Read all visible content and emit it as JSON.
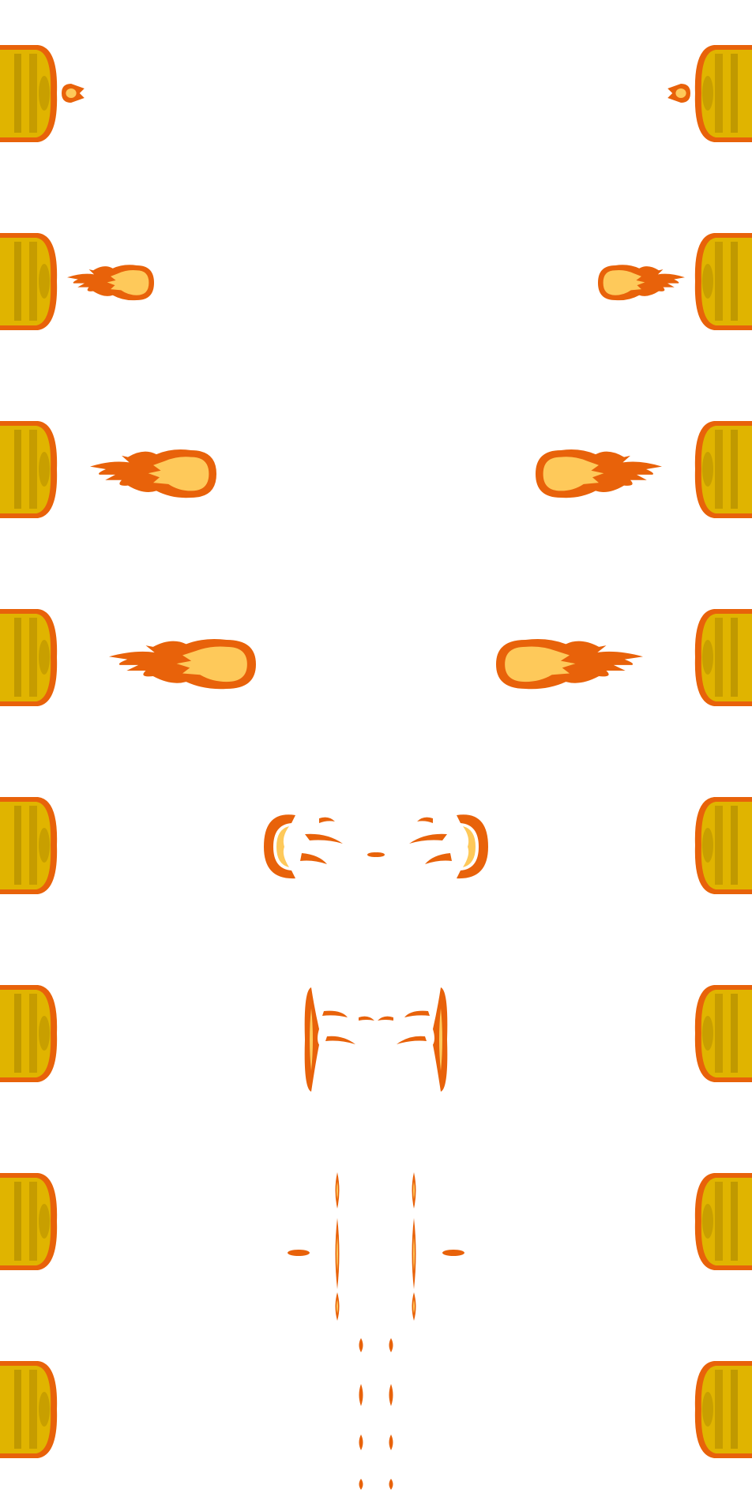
{
  "sprite_sheet": {
    "background": "#ffffff",
    "colors": {
      "flame_outline": "#e8620a",
      "flame_core": "#fec95a",
      "cannon_body": "#e0b400",
      "cannon_dark": "#b08800",
      "cannon_rim": "#e8620a",
      "cannon_shade": "#9a7800"
    },
    "frames": [
      {
        "name": "frame-1",
        "stage": "spark"
      },
      {
        "name": "frame-2",
        "stage": "small-fireball"
      },
      {
        "name": "frame-3",
        "stage": "fireball"
      },
      {
        "name": "frame-4",
        "stage": "large-fireball"
      },
      {
        "name": "frame-5",
        "stage": "breaking-fireball"
      },
      {
        "name": "frame-6",
        "stage": "flame-wall"
      },
      {
        "name": "frame-7",
        "stage": "fading-flame"
      },
      {
        "name": "frame-8",
        "stage": "embers"
      }
    ]
  }
}
